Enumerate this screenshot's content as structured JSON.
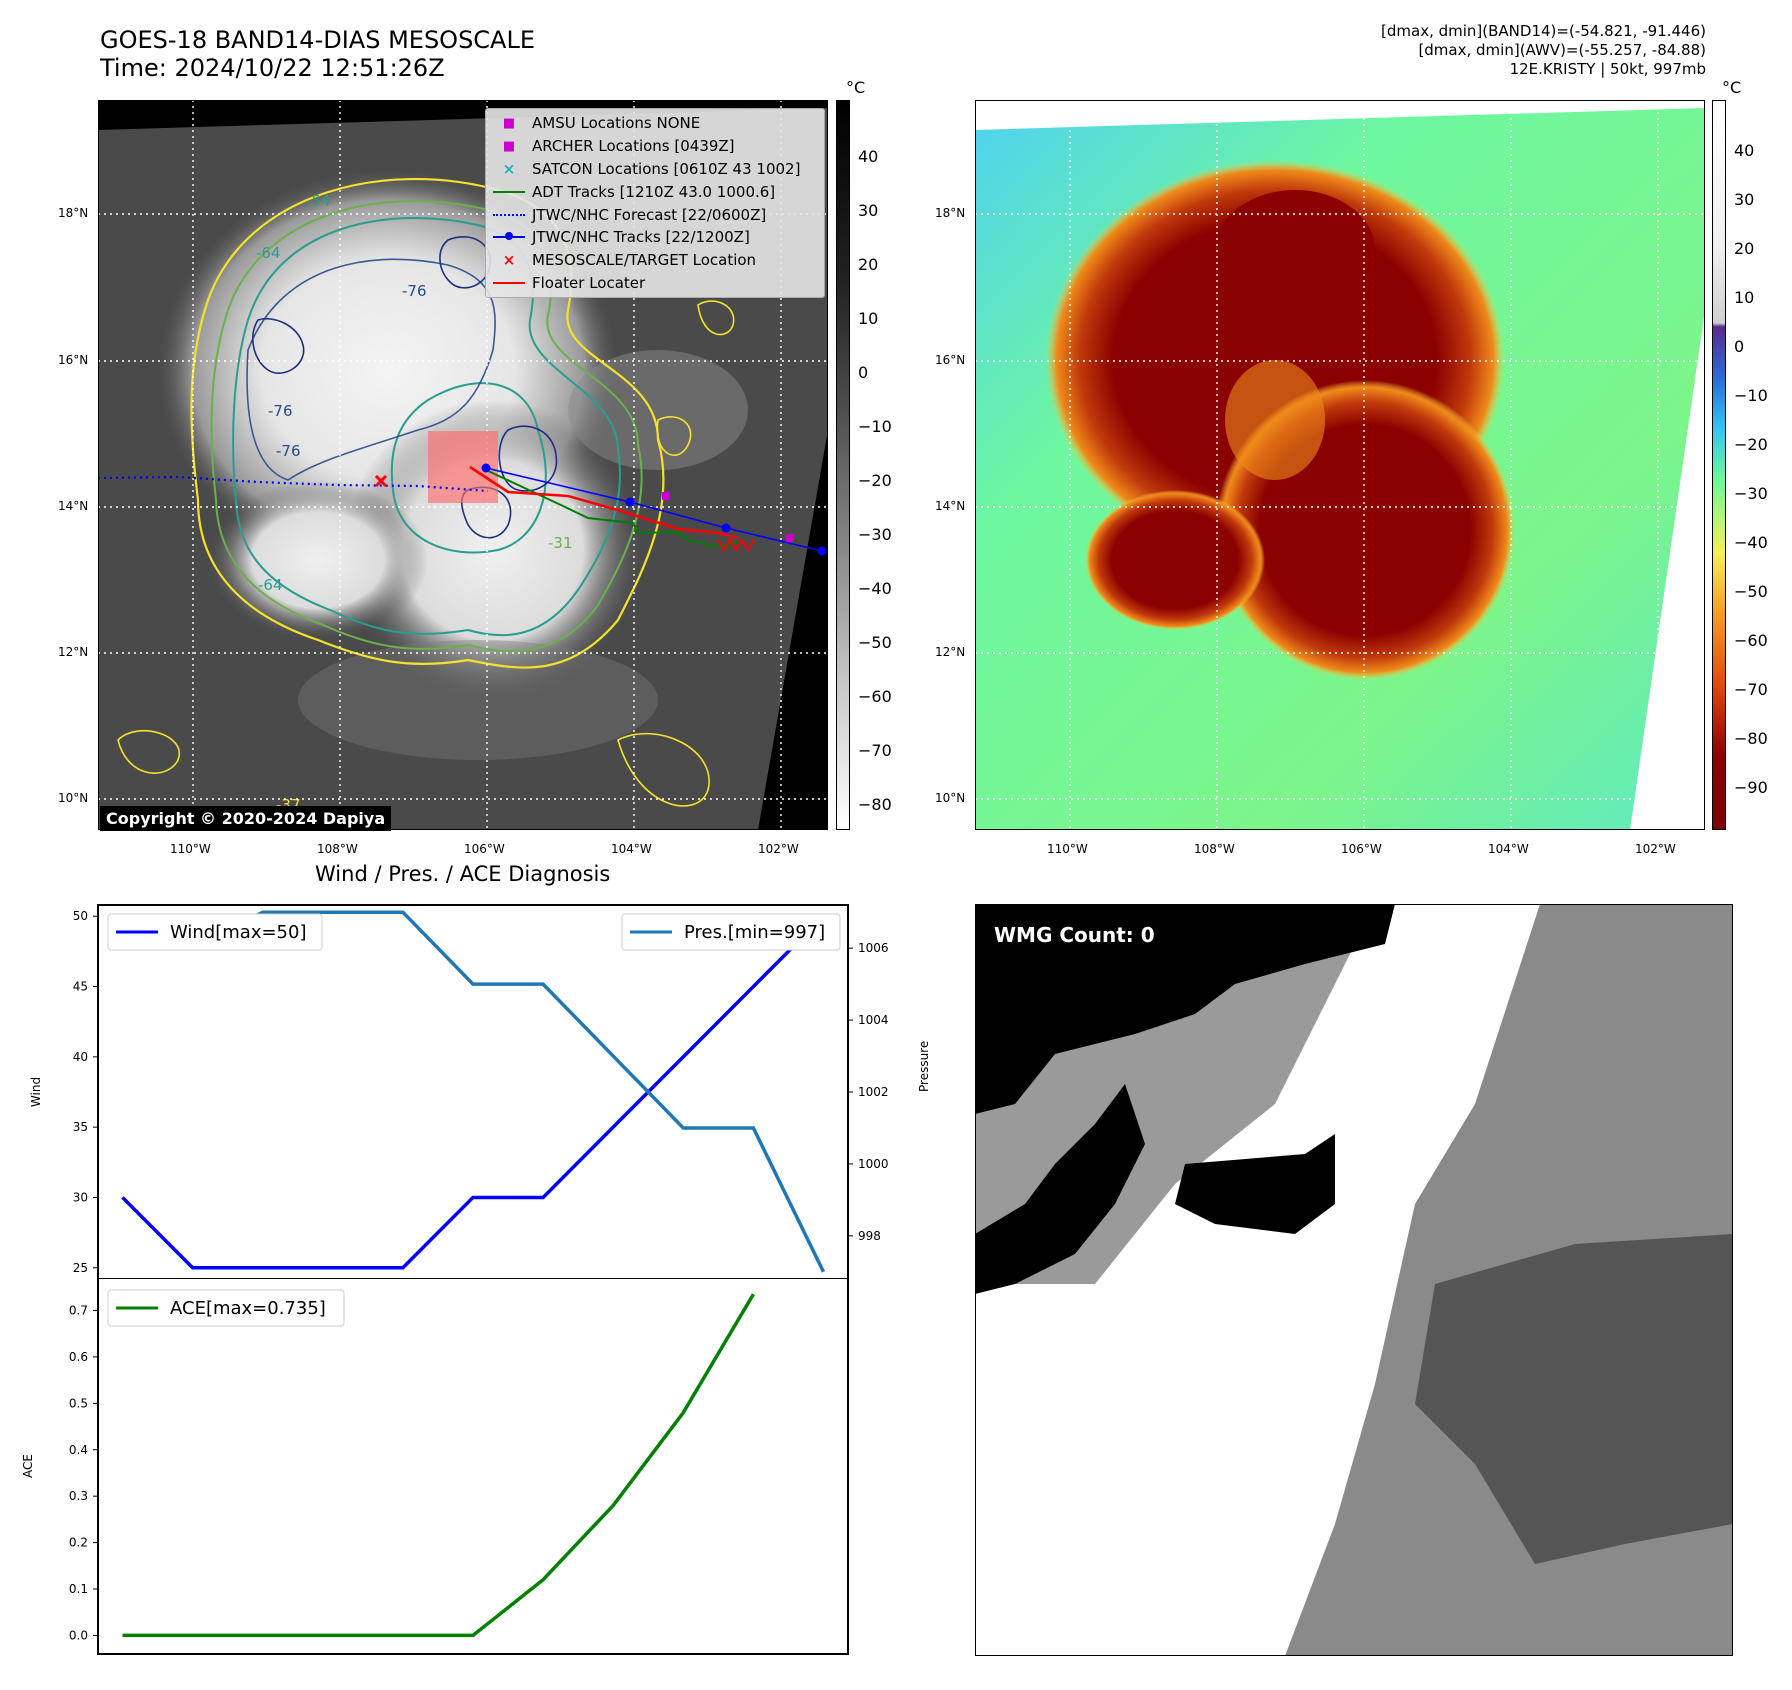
{
  "header": {
    "title_line1": "GOES-18 BAND14-DIAS MESOSCALE",
    "title_line2": "Time: 2024/10/22 12:51:26Z",
    "info_line1": "[dmax, dmin](BAND14)=(-54.821, -91.446)",
    "info_line2": "[dmax, dmin](AWV)=(-55.257, -84.88)",
    "info_line3": "12E.KRISTY | 50kt, 997mb"
  },
  "map_left": {
    "lon_ticks": [
      "110°W",
      "108°W",
      "106°W",
      "104°W",
      "102°W"
    ],
    "lat_ticks": [
      "18°N",
      "16°N",
      "14°N",
      "12°N",
      "10°N"
    ],
    "copyright": "Copyright © 2020-2024 Dapiya",
    "contour_labels": [
      "-54",
      "-64",
      "-76",
      "-76",
      "-76",
      "-64",
      "-31",
      "-37"
    ],
    "legend": [
      {
        "label": "AMSU Locations NONE",
        "color": "#cc00cc",
        "kind": "square"
      },
      {
        "label": "ARCHER Locations [0439Z]",
        "color": "#cc00cc",
        "kind": "square"
      },
      {
        "label": "SATCON Locations [0610Z 43 1002]",
        "color": "#20b2aa",
        "kind": "x"
      },
      {
        "label": "ADT Tracks [1210Z 43.0 1000.6]",
        "color": "#008000",
        "kind": "line"
      },
      {
        "label": "JTWC/NHC Forecast [22/0600Z]",
        "color": "#0000ff",
        "kind": "dotted"
      },
      {
        "label": "JTWC/NHC Tracks [22/1200Z]",
        "color": "#0000ff",
        "kind": "line-dot"
      },
      {
        "label": "MESOSCALE/TARGET Location",
        "color": "#ff0000",
        "kind": "x"
      },
      {
        "label": "Floater Locater",
        "color": "#ff0000",
        "kind": "line"
      }
    ],
    "colorbar": {
      "unit": "°C",
      "ticks": [
        "40",
        "30",
        "20",
        "10",
        "0",
        "−10",
        "−20",
        "−30",
        "−40",
        "−50",
        "−60",
        "−70",
        "−80"
      ]
    }
  },
  "map_right": {
    "lon_ticks": [
      "110°W",
      "108°W",
      "106°W",
      "104°W",
      "102°W"
    ],
    "lat_ticks": [
      "18°N",
      "16°N",
      "14°N",
      "12°N",
      "10°N"
    ],
    "colorbar": {
      "unit": "°C",
      "ticks": [
        "40",
        "30",
        "20",
        "10",
        "0",
        "−10",
        "−20",
        "−30",
        "−40",
        "−50",
        "−60",
        "−70",
        "−80",
        "−90"
      ]
    }
  },
  "wmg": {
    "label": "WMG Count: 0"
  },
  "chart_data": [
    {
      "type": "line",
      "title": "Wind / Pres. / ACE Diagnosis",
      "x": [
        0,
        1,
        2,
        3,
        4,
        5,
        6,
        7,
        8,
        9,
        10
      ],
      "series": [
        {
          "name": "Wind[max=50]",
          "axis": "left",
          "color": "#0000ff",
          "values": [
            30,
            25,
            25,
            25,
            25,
            30,
            30,
            35,
            40,
            45,
            50
          ]
        },
        {
          "name": "Pres.[min=997]",
          "axis": "right",
          "color": "#1f77b4",
          "values": [
            1006,
            1006,
            1007,
            1007,
            1007,
            1005,
            1005,
            1003,
            1001,
            1001,
            997
          ]
        }
      ],
      "ylabel": "Wind",
      "y2label": "Pressure",
      "ylim": [
        24.2,
        50.8
      ],
      "y2lim": [
        996.8,
        1007.2
      ],
      "yticks": [
        "50",
        "45",
        "40",
        "35",
        "30",
        "25"
      ],
      "y2ticks": [
        "1006",
        "1004",
        "1002",
        "1000",
        "998"
      ]
    },
    {
      "type": "line",
      "x": [
        0,
        1,
        2,
        3,
        4,
        5,
        6,
        7,
        8,
        9,
        10
      ],
      "series": [
        {
          "name": "ACE[max=0.735]",
          "color": "#008000",
          "values": [
            0,
            0,
            0,
            0,
            0,
            0,
            0.12,
            0.28,
            0.48,
            0.735,
            0.735
          ]
        }
      ],
      "ylabel": "ACE",
      "ylim": [
        -0.04,
        0.77
      ],
      "yticks": [
        "0.7",
        "0.6",
        "0.5",
        "0.4",
        "0.3",
        "0.2",
        "0.1",
        "0.0"
      ]
    }
  ]
}
